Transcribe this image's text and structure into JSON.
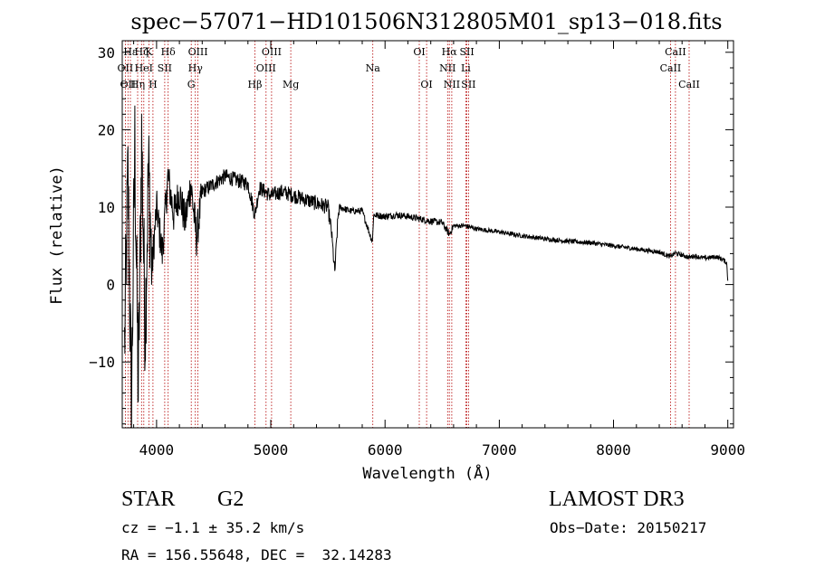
{
  "chart_data": {
    "type": "line",
    "title": "spec−57071−HD101506N312805M01_sp13−018.fits",
    "xlabel": "Wavelength (Å)",
    "ylabel": "Flux (relative)",
    "xlim": [
      3700,
      9050
    ],
    "ylim": [
      -18.5,
      31.5
    ],
    "x_ticks": [
      4000,
      5000,
      6000,
      7000,
      8000,
      9000
    ],
    "x_tick_labels": [
      "4000",
      "5000",
      "6000",
      "7000",
      "8000",
      "9000"
    ],
    "y_ticks": [
      -10,
      0,
      10,
      20,
      30
    ],
    "y_tick_labels": [
      "−10",
      "0",
      "10",
      "20",
      "30"
    ],
    "grid": false,
    "series": [
      {
        "name": "flux",
        "color": "#000000",
        "x": [
          3720,
          3750,
          3780,
          3810,
          3840,
          3870,
          3900,
          3930,
          3960,
          4000,
          4050,
          4100,
          4150,
          4200,
          4250,
          4300,
          4350,
          4400,
          4500,
          4600,
          4700,
          4800,
          4861,
          4900,
          5000,
          5100,
          5200,
          5300,
          5400,
          5500,
          5530,
          5560,
          5590,
          5600,
          5700,
          5800,
          5890,
          5900,
          6000,
          6100,
          6200,
          6300,
          6400,
          6500,
          6563,
          6600,
          6700,
          6800,
          6900,
          7000,
          7200,
          7400,
          7600,
          7800,
          8000,
          8200,
          8400,
          8498,
          8542,
          8600,
          8662,
          8700,
          8800,
          8900,
          8960,
          8990,
          9000
        ],
        "values": [
          -8,
          14,
          -16,
          18,
          -14,
          19,
          -6,
          15,
          2,
          10,
          4,
          14,
          9,
          12,
          8,
          13,
          6,
          12,
          13,
          14,
          13.5,
          13,
          9,
          12.5,
          11.5,
          12,
          11.5,
          11,
          10.5,
          10,
          7,
          1.5,
          9,
          10,
          9.5,
          9.5,
          5.5,
          9,
          8.8,
          9,
          8.8,
          8.5,
          8.2,
          8,
          6.5,
          7.6,
          7.6,
          7.2,
          7,
          6.8,
          6.3,
          5.9,
          5.6,
          5.4,
          5,
          4.6,
          4.2,
          3.6,
          4.1,
          3.8,
          3.5,
          3.7,
          3.4,
          3.6,
          3.2,
          2.8,
          0.5
        ]
      }
    ],
    "line_color": "#b30000",
    "lines": [
      {
        "wl": 3727,
        "label": "OII",
        "row": 1
      },
      {
        "wl": 3750,
        "label": "OII",
        "row": 2
      },
      {
        "wl": 3771,
        "label": "Hε",
        "row": 0
      },
      {
        "wl": 3835,
        "label": "Hη",
        "row": 2
      },
      {
        "wl": 3869,
        "label": "Hζ",
        "row": 0
      },
      {
        "wl": 3889,
        "label": "HeI",
        "row": 1
      },
      {
        "wl": 3934,
        "label": "K",
        "row": 0
      },
      {
        "wl": 3969,
        "label": "H",
        "row": 2
      },
      {
        "wl": 4072,
        "label": "SII",
        "row": 1
      },
      {
        "wl": 4102,
        "label": "Hδ",
        "row": 0
      },
      {
        "wl": 4304,
        "label": "G",
        "row": 2
      },
      {
        "wl": 4340,
        "label": "Hγ",
        "row": 1
      },
      {
        "wl": 4363,
        "label": "OIII",
        "row": 0
      },
      {
        "wl": 4861,
        "label": "Hβ",
        "row": 2
      },
      {
        "wl": 4959,
        "label": "OIII",
        "row": 1
      },
      {
        "wl": 5007,
        "label": "OIII",
        "row": 0
      },
      {
        "wl": 5175,
        "label": "Mg",
        "row": 2
      },
      {
        "wl": 5893,
        "label": "Na",
        "row": 1
      },
      {
        "wl": 6300,
        "label": "OI",
        "row": 0
      },
      {
        "wl": 6364,
        "label": "OI",
        "row": 2
      },
      {
        "wl": 6548,
        "label": "NII",
        "row": 1
      },
      {
        "wl": 6563,
        "label": "Hα",
        "row": 0
      },
      {
        "wl": 6584,
        "label": "NII",
        "row": 2
      },
      {
        "wl": 6707,
        "label": "Li",
        "row": 1
      },
      {
        "wl": 6717,
        "label": "SII",
        "row": 0
      },
      {
        "wl": 6731,
        "label": "SII",
        "row": 2
      },
      {
        "wl": 8498,
        "label": "CaII",
        "row": 1
      },
      {
        "wl": 8542,
        "label": "CaII",
        "row": 0
      },
      {
        "wl": 8662,
        "label": "CaII",
        "row": 2
      }
    ]
  },
  "info": {
    "class_label": "STAR",
    "subclass": "G2",
    "survey": "LAMOST DR3",
    "cz": "cz = −1.1 ± 35.2 km/s",
    "obs_date": "Obs−Date: 20150217",
    "coords": "RA = 156.55648, DEC =  32.14283"
  }
}
